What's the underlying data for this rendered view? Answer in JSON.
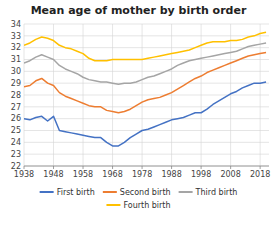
{
  "chart_data": {
    "type": "line",
    "title": "Mean age of mother by birth order",
    "x": [
      1938,
      1940,
      1942,
      1944,
      1946,
      1948,
      1950,
      1952,
      1954,
      1956,
      1958,
      1960,
      1962,
      1964,
      1966,
      1968,
      1970,
      1972,
      1974,
      1976,
      1978,
      1980,
      1982,
      1984,
      1986,
      1988,
      1990,
      1992,
      1994,
      1996,
      1998,
      2000,
      2002,
      2004,
      2006,
      2008,
      2010,
      2012,
      2014,
      2016,
      2018,
      2020
    ],
    "series": [
      {
        "name": "First birth",
        "color": "#4472C4",
        "values": [
          26.0,
          25.9,
          26.1,
          26.2,
          25.8,
          26.2,
          25.0,
          24.9,
          24.8,
          24.7,
          24.6,
          24.5,
          24.4,
          24.4,
          24.0,
          23.7,
          23.7,
          24.0,
          24.4,
          24.7,
          25.0,
          25.1,
          25.3,
          25.5,
          25.7,
          25.9,
          26.0,
          26.1,
          26.3,
          26.5,
          26.5,
          26.8,
          27.2,
          27.5,
          27.8,
          28.1,
          28.3,
          28.6,
          28.8,
          29.0,
          29.0,
          29.1
        ]
      },
      {
        "name": "Second birth",
        "color": "#ED7D31",
        "values": [
          28.7,
          28.8,
          29.2,
          29.4,
          29.0,
          28.8,
          28.2,
          27.9,
          27.7,
          27.5,
          27.3,
          27.1,
          27.0,
          27.0,
          26.7,
          26.6,
          26.5,
          26.6,
          26.8,
          27.1,
          27.4,
          27.6,
          27.7,
          27.8,
          28.0,
          28.2,
          28.5,
          28.8,
          29.1,
          29.4,
          29.6,
          29.9,
          30.1,
          30.3,
          30.5,
          30.7,
          30.9,
          31.1,
          31.3,
          31.4,
          31.5,
          31.6
        ]
      },
      {
        "name": "Third birth",
        "color": "#A5A5A5",
        "values": [
          30.7,
          30.9,
          31.2,
          31.4,
          31.2,
          31.0,
          30.5,
          30.2,
          30.0,
          29.8,
          29.5,
          29.3,
          29.2,
          29.1,
          29.1,
          29.0,
          28.9,
          29.0,
          29.0,
          29.1,
          29.3,
          29.5,
          29.6,
          29.8,
          30.0,
          30.2,
          30.5,
          30.7,
          30.9,
          31.0,
          31.1,
          31.2,
          31.3,
          31.4,
          31.5,
          31.6,
          31.7,
          31.9,
          32.1,
          32.2,
          32.3,
          32.4
        ]
      },
      {
        "name": "Fourth birth",
        "color": "#FFC000",
        "values": [
          32.2,
          32.4,
          32.7,
          32.9,
          32.8,
          32.6,
          32.2,
          32.0,
          31.9,
          31.7,
          31.5,
          31.1,
          30.9,
          30.9,
          30.9,
          31.0,
          31.0,
          31.0,
          31.0,
          31.0,
          31.0,
          31.1,
          31.2,
          31.3,
          31.4,
          31.5,
          31.6,
          31.7,
          31.8,
          32.0,
          32.2,
          32.4,
          32.5,
          32.5,
          32.5,
          32.6,
          32.6,
          32.7,
          32.9,
          33.0,
          33.2,
          33.3
        ]
      }
    ],
    "xlim": [
      1938,
      2021
    ],
    "ylim": [
      22,
      34
    ],
    "xticks": [
      1938,
      1948,
      1958,
      1968,
      1978,
      1988,
      1998,
      2008,
      2018
    ],
    "yticks": [
      22,
      23,
      24,
      25,
      26,
      27,
      28,
      29,
      30,
      31,
      32,
      33,
      34
    ],
    "grid": true,
    "legend": "bottom"
  }
}
